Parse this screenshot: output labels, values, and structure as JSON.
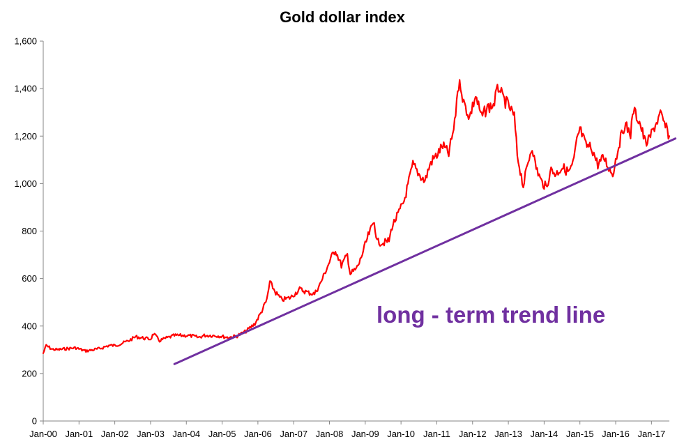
{
  "chart_data": {
    "type": "line",
    "title": "Gold dollar index",
    "xlabel": "",
    "ylabel": "",
    "ylim": [
      0,
      1600
    ],
    "yticks": [
      0,
      200,
      400,
      600,
      800,
      1000,
      1200,
      1400,
      1600
    ],
    "ytick_labels": [
      "0",
      "200",
      "400",
      "600",
      "800",
      "1,000",
      "1,200",
      "1,400",
      "1,600"
    ],
    "xlim": [
      "2000-01",
      "2017-07"
    ],
    "xticks": [
      "2000-01",
      "2001-01",
      "2002-01",
      "2003-01",
      "2004-01",
      "2005-01",
      "2006-01",
      "2007-01",
      "2008-01",
      "2009-01",
      "2010-01",
      "2011-01",
      "2012-01",
      "2013-01",
      "2014-01",
      "2015-01",
      "2016-01",
      "2017-01"
    ],
    "xtick_labels": [
      "Jan-00",
      "Jan-01",
      "Jan-02",
      "Jan-03",
      "Jan-04",
      "Jan-05",
      "Jan-06",
      "Jan-07",
      "Jan-08",
      "Jan-09",
      "Jan-10",
      "Jan-11",
      "Jan-12",
      "Jan-13",
      "Jan-14",
      "Jan-15",
      "Jan-16",
      "Jan-17"
    ],
    "grid": false,
    "legend": "none",
    "series": [
      {
        "color": "#ff0000",
        "points": [
          [
            "2000-01",
            285
          ],
          [
            "2000-02",
            318
          ],
          [
            "2000-04",
            302
          ],
          [
            "2000-06",
            300
          ],
          [
            "2000-09",
            305
          ],
          [
            "2000-12",
            308
          ],
          [
            "2001-03",
            295
          ],
          [
            "2001-05",
            298
          ],
          [
            "2001-08",
            305
          ],
          [
            "2001-11",
            318
          ],
          [
            "2002-01",
            318
          ],
          [
            "2002-03",
            325
          ],
          [
            "2002-06",
            340
          ],
          [
            "2002-08",
            355
          ],
          [
            "2002-11",
            348
          ],
          [
            "2003-01",
            345
          ],
          [
            "2003-02",
            368
          ],
          [
            "2003-04",
            338
          ],
          [
            "2003-06",
            348
          ],
          [
            "2003-09",
            360
          ],
          [
            "2003-11",
            360
          ],
          [
            "2004-01",
            360
          ],
          [
            "2004-03",
            358
          ],
          [
            "2004-05",
            352
          ],
          [
            "2004-07",
            360
          ],
          [
            "2004-10",
            360
          ],
          [
            "2004-12",
            358
          ],
          [
            "2005-03",
            352
          ],
          [
            "2005-06",
            358
          ],
          [
            "2005-09",
            378
          ],
          [
            "2005-12",
            410
          ],
          [
            "2006-02",
            455
          ],
          [
            "2006-04",
            510
          ],
          [
            "2006-05",
            585
          ],
          [
            "2006-07",
            540
          ],
          [
            "2006-09",
            510
          ],
          [
            "2006-12",
            520
          ],
          [
            "2007-03",
            555
          ],
          [
            "2007-06",
            540
          ],
          [
            "2007-08",
            535
          ],
          [
            "2007-10",
            580
          ],
          [
            "2007-12",
            640
          ],
          [
            "2008-02",
            700
          ],
          [
            "2008-03",
            720
          ],
          [
            "2008-05",
            655
          ],
          [
            "2008-07",
            700
          ],
          [
            "2008-08",
            620
          ],
          [
            "2008-10",
            640
          ],
          [
            "2008-11",
            665
          ],
          [
            "2009-02",
            780
          ],
          [
            "2009-04",
            840
          ],
          [
            "2009-05",
            755
          ],
          [
            "2009-07",
            750
          ],
          [
            "2009-09",
            760
          ],
          [
            "2009-10",
            820
          ],
          [
            "2009-12",
            870
          ],
          [
            "2010-02",
            925
          ],
          [
            "2010-05",
            1080
          ],
          [
            "2010-07",
            1040
          ],
          [
            "2010-09",
            1010
          ],
          [
            "2010-11",
            1090
          ],
          [
            "2011-01",
            1120
          ],
          [
            "2011-03",
            1160
          ],
          [
            "2011-05",
            1125
          ],
          [
            "2011-07",
            1250
          ],
          [
            "2011-08",
            1400
          ],
          [
            "2011-09",
            1420
          ],
          [
            "2011-10",
            1340
          ],
          [
            "2011-12",
            1280
          ],
          [
            "2012-02",
            1370
          ],
          [
            "2012-04",
            1280
          ],
          [
            "2012-06",
            1320
          ],
          [
            "2012-08",
            1330
          ],
          [
            "2012-09",
            1380
          ],
          [
            "2012-10",
            1410
          ],
          [
            "2012-11",
            1360
          ],
          [
            "2013-01",
            1330
          ],
          [
            "2013-03",
            1280
          ],
          [
            "2013-04",
            1120
          ],
          [
            "2013-06",
            990
          ],
          [
            "2013-08",
            1110
          ],
          [
            "2013-09",
            1160
          ],
          [
            "2013-10",
            1080
          ],
          [
            "2013-12",
            1010
          ],
          [
            "2014-02",
            980
          ],
          [
            "2014-03",
            1060
          ],
          [
            "2014-05",
            1040
          ],
          [
            "2014-07",
            1070
          ],
          [
            "2014-09",
            1050
          ],
          [
            "2014-10",
            1060
          ],
          [
            "2014-11",
            1100
          ],
          [
            "2014-12",
            1180
          ],
          [
            "2015-01",
            1230
          ],
          [
            "2015-03",
            1160
          ],
          [
            "2015-05",
            1150
          ],
          [
            "2015-07",
            1080
          ],
          [
            "2015-09",
            1110
          ],
          [
            "2015-11",
            1060
          ],
          [
            "2015-12",
            1040
          ],
          [
            "2016-02",
            1160
          ],
          [
            "2016-04",
            1250
          ],
          [
            "2016-06",
            1210
          ],
          [
            "2016-07",
            1310
          ],
          [
            "2016-09",
            1260
          ],
          [
            "2016-11",
            1170
          ],
          [
            "2016-12",
            1180
          ],
          [
            "2017-02",
            1240
          ],
          [
            "2017-04",
            1290
          ],
          [
            "2017-06",
            1230
          ],
          [
            "2017-07",
            1200
          ]
        ]
      },
      {
        "color": "#7030a0",
        "points": [
          [
            "2003-09",
            240
          ],
          [
            "2017-09",
            1190
          ]
        ]
      }
    ],
    "annotations": [
      {
        "text": "long - term trend line",
        "color": "#7030a0"
      }
    ]
  }
}
